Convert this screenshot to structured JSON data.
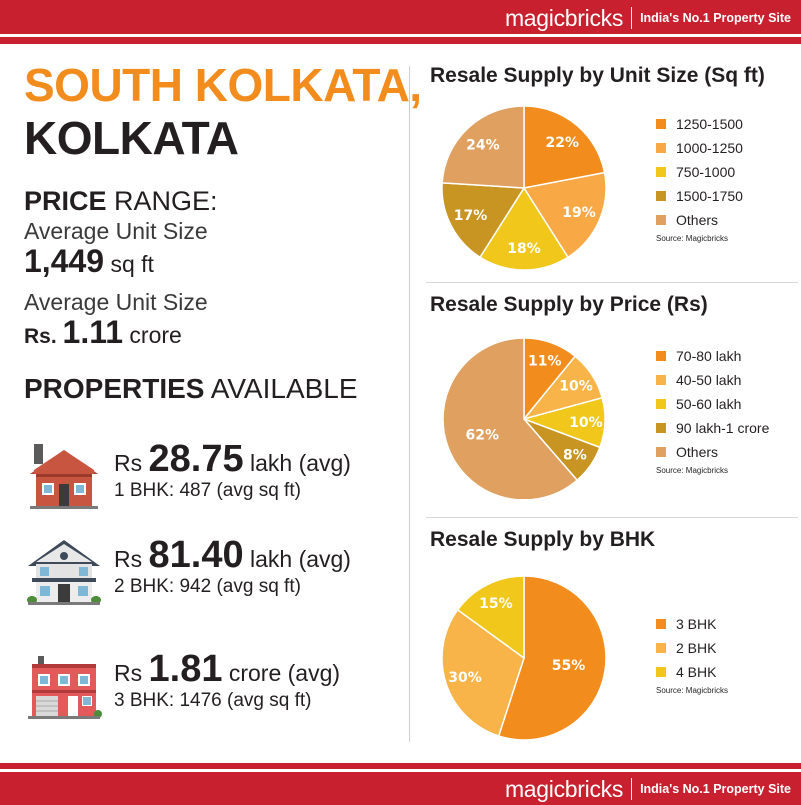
{
  "brand": {
    "logo": "magicbricks",
    "tagline": "India's No.1 Property Site"
  },
  "title": {
    "line1": "SOUTH KOLKATA,",
    "line2": "KOLKATA"
  },
  "price_range": {
    "heading_bold": "PRICE",
    "heading_rest": " RANGE:",
    "unit_size_label": "Average Unit Size",
    "unit_size_value": "1,449",
    "unit_size_unit": " sq ft",
    "price_label": "Average Unit Size",
    "price_prefix": "Rs. ",
    "price_value": "1.11",
    "price_unit": " crore"
  },
  "properties": {
    "heading_bold": "PROPERTIES",
    "heading_rest": " AVAILABLE",
    "items": [
      {
        "prefix": "Rs ",
        "value": "28.75",
        "unit": " lakh (avg)",
        "detail": "1 BHK: 487 (avg sq ft)",
        "icon": "house-icon"
      },
      {
        "prefix": "Rs ",
        "value": "81.40",
        "unit": " lakh (avg)",
        "detail": "2 BHK: 942 (avg sq ft)",
        "icon": "villa-icon"
      },
      {
        "prefix": "Rs ",
        "value": "1.81",
        "unit": " crore (avg)",
        "detail": "3 BHK: 1476 (avg sq ft)",
        "icon": "building-icon"
      }
    ]
  },
  "chart_data": [
    {
      "type": "pie",
      "title": "Resale Supply by Unit Size (Sq ft)",
      "categories": [
        "1250-1500",
        "1000-1250",
        "750-1000",
        "1500-1750",
        "Others"
      ],
      "values": [
        22,
        19,
        18,
        17,
        24
      ],
      "labels": [
        "22%",
        "19%",
        "18%",
        "17%",
        "24%"
      ],
      "colors": [
        "#f28c1c",
        "#f8a945",
        "#f2c71b",
        "#c89422",
        "#e0a060"
      ],
      "source": "Source: Magicbricks",
      "legend": "right"
    },
    {
      "type": "pie",
      "title": "Resale Supply by Price (Rs)",
      "categories": [
        "70-80 lakh",
        "40-50 lakh",
        "50-60 lakh",
        "90 lakh-1 crore",
        "Others"
      ],
      "values": [
        11,
        10,
        10,
        8,
        62
      ],
      "labels": [
        "11%",
        "10%",
        "10%",
        "8%",
        "62%"
      ],
      "colors": [
        "#f28c1c",
        "#f8b448",
        "#f2c71b",
        "#c89422",
        "#e0a060"
      ],
      "source": "Source: Magicbricks",
      "legend": "right"
    },
    {
      "type": "pie",
      "title": "Resale Supply by BHK",
      "categories": [
        "3 BHK",
        "2 BHK",
        "4 BHK"
      ],
      "values": [
        55,
        30,
        15
      ],
      "labels": [
        "55%",
        "30%",
        "15%"
      ],
      "colors": [
        "#f28c1c",
        "#f8b448",
        "#f2c71b"
      ],
      "source": "Source: Magicbricks",
      "legend": "right"
    }
  ]
}
